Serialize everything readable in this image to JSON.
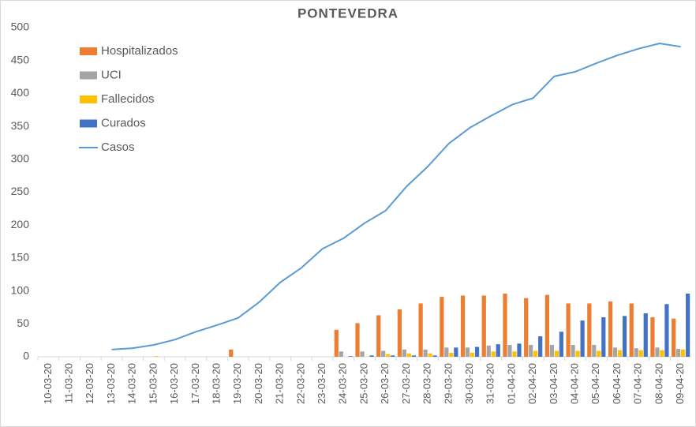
{
  "chart_data": {
    "type": "bar",
    "title": "PONTEVEDRA",
    "categories": [
      "10-03-20",
      "11-03-20",
      "12-03-20",
      "13-03-20",
      "14-03-20",
      "15-03-20",
      "16-03-20",
      "17-03-20",
      "18-03-20",
      "19-03-20",
      "20-03-20",
      "21-03-20",
      "22-03-20",
      "23-03-20",
      "24-03-20",
      "25-03-20",
      "26-03-20",
      "27-03-20",
      "28-03-20",
      "29-03-20",
      "30-03-20",
      "31-03-20",
      "01-04-20",
      "02-04-20",
      "03-04-20",
      "04-04-20",
      "05-04-20",
      "06-04-20",
      "07-04-20",
      "08-04-20",
      "09-04-20"
    ],
    "series": [
      {
        "name": "Hospitalizados",
        "color": "#ed7d31",
        "values": [
          0,
          0,
          0,
          0,
          0,
          0,
          0,
          0,
          0,
          11,
          0,
          0,
          0,
          0,
          41,
          51,
          63,
          72,
          81,
          91,
          93,
          93,
          96,
          89,
          94,
          81,
          81,
          84,
          81,
          60,
          58
        ]
      },
      {
        "name": "UCI",
        "color": "#a5a5a5",
        "values": [
          0,
          0,
          0,
          0,
          0,
          0,
          0,
          0,
          0,
          0,
          0,
          0,
          0,
          0,
          8,
          8,
          9,
          11,
          11,
          14,
          14,
          17,
          18,
          18,
          18,
          18,
          18,
          14,
          13,
          14,
          12
        ]
      },
      {
        "name": "Fallecidos",
        "color": "#ffc000",
        "values": [
          0,
          0,
          0,
          0,
          0,
          1,
          0,
          0,
          0,
          0,
          0,
          0,
          0,
          0,
          0,
          0,
          4,
          5,
          5,
          6,
          6,
          8,
          8,
          9,
          9,
          9,
          9,
          10,
          10,
          10,
          11
        ]
      },
      {
        "name": "Curados",
        "color": "#4472c4",
        "values": [
          0,
          0,
          0,
          0,
          0,
          0,
          0,
          0,
          0,
          0,
          0,
          0,
          0,
          0,
          1,
          2,
          2,
          2,
          2,
          14,
          15,
          19,
          20,
          31,
          38,
          55,
          60,
          62,
          66,
          80,
          96
        ]
      },
      {
        "name": "Casos",
        "color": "#5b9bd5",
        "type": "line",
        "values": [
          null,
          null,
          null,
          11,
          13,
          18,
          26,
          38,
          48,
          59,
          83,
          113,
          135,
          164,
          180,
          203,
          222,
          259,
          289,
          324,
          348,
          366,
          383,
          393,
          426,
          433,
          446,
          458,
          468,
          476,
          471
        ]
      }
    ],
    "ylim": [
      0,
      500
    ],
    "yticks": [
      0,
      50,
      100,
      150,
      200,
      250,
      300,
      350,
      400,
      450,
      500
    ],
    "grid": false,
    "legend": "top-left"
  }
}
